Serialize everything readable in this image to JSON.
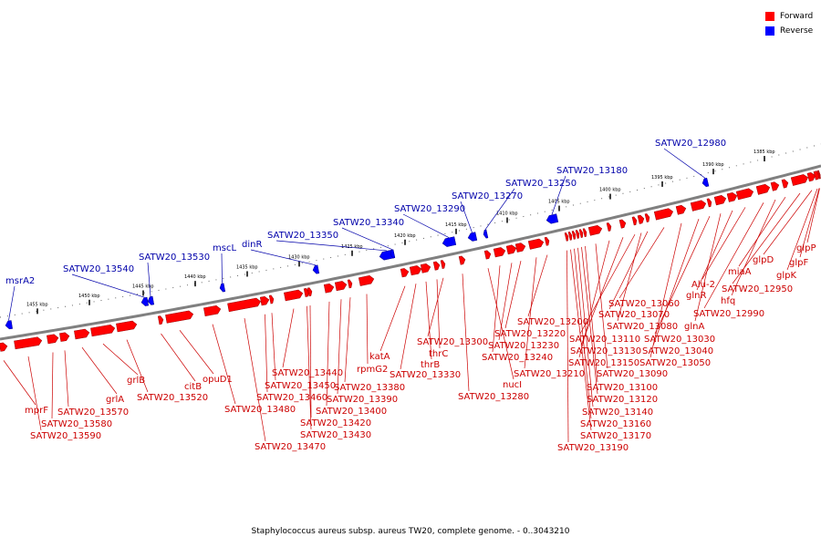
{
  "colors": {
    "forward": "#ff0000",
    "reverse": "#0000ff",
    "forward_text": "#cc0000",
    "reverse_text": "#0000aa",
    "backbone": "#808080"
  },
  "legend": [
    {
      "label": "Forward",
      "color": "#ff0000"
    },
    {
      "label": "Reverse",
      "color": "#0000ff"
    }
  ],
  "caption": "Staphylococcus aureus subsp. aureus TW20, complete genome. - 0..3043210",
  "ticks": [
    "1455 kbp",
    "1450 kbp",
    "1445 kbp",
    "1440 kbp",
    "1435 kbp",
    "1430 kbp",
    "1425 kbp",
    "1420 kbp",
    "1415 kbp",
    "1410 kbp",
    "1405 kbp",
    "1400 kbp",
    "1395 kbp",
    "1390 kbp",
    "1385 kbp"
  ],
  "reverse_genes": [
    "msrA2",
    "SATW20_13540",
    "SATW20_13530",
    "mscL",
    "dinR",
    "SATW20_13350",
    "SATW20_13340",
    "SATW20_13290",
    "SATW20_13270",
    "SATW20_13250",
    "SATW20_13180",
    "SATW20_12980"
  ],
  "forward_genes": [
    "mprF",
    "SATW20_13590",
    "SATW20_13580",
    "SATW20_13570",
    "grlA",
    "grlB",
    "SATW20_13520",
    "citB",
    "opuD1",
    "SATW20_13480",
    "SATW20_13470",
    "SATW20_13460",
    "SATW20_13450",
    "SATW20_13440",
    "SATW20_13430",
    "SATW20_13420",
    "SATW20_13400",
    "SATW20_13390",
    "SATW20_13380",
    "rpmG2",
    "katA",
    "SATW20_13330",
    "thrB",
    "thrC",
    "SATW20_13300",
    "SATW20_13280",
    "nucI",
    "SATW20_13240",
    "SATW20_13230",
    "SATW20_13220",
    "SATW20_13210",
    "SATW20_13200",
    "SATW20_13190",
    "SATW20_13170",
    "SATW20_13160",
    "SATW20_13140",
    "SATW20_13120",
    "SATW20_13100",
    "SATW20_13090",
    "SATW20_13150",
    "SATW20_13130",
    "SATW20_13110",
    "SATW20_13080",
    "SATW20_13070",
    "SATW20_13060",
    "SATW20_13050",
    "SATW20_13040",
    "SATW20_13030",
    "glnA",
    "glnR",
    "Alu-2",
    "SATW20_12990",
    "hfq",
    "miaA",
    "SATW20_12950",
    "glpD",
    "glpK",
    "glpF",
    "glpP"
  ]
}
